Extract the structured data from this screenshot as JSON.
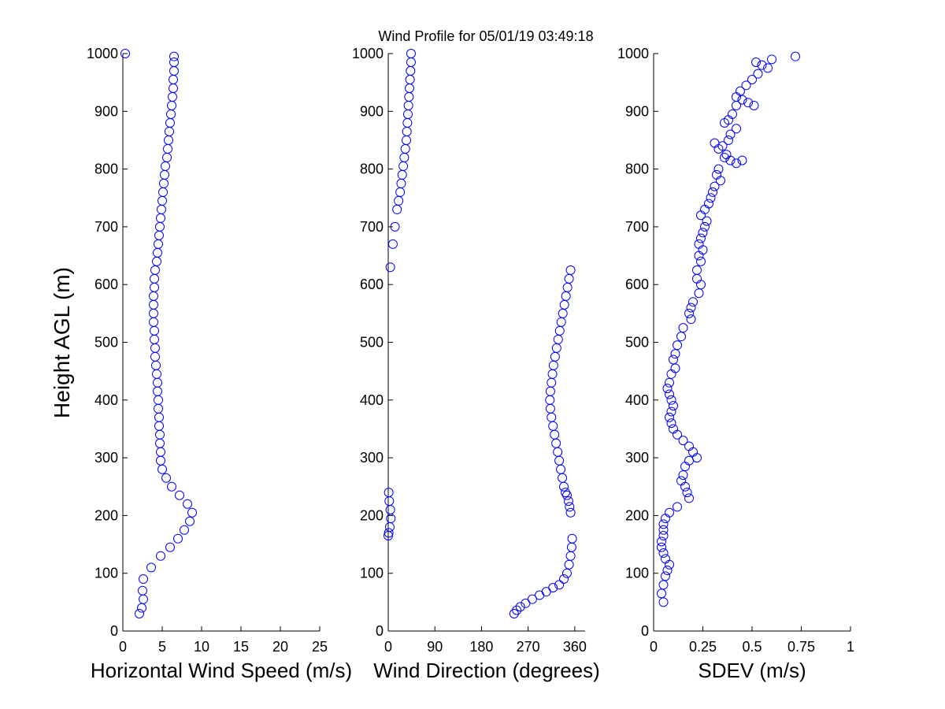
{
  "title": "Wind Profile for  05/01/19 03:49:18",
  "ylabel": "Height AGL (m)",
  "marker_color": "#0000ff",
  "chart_data": [
    {
      "type": "scatter",
      "xlabel": "Horizontal Wind Speed (m/s)",
      "xlim": [
        0,
        25
      ],
      "xticks": [
        "0",
        "5",
        "10",
        "15",
        "20",
        "25"
      ],
      "ylim": [
        0,
        1000
      ],
      "yticks": [
        "0",
        "100",
        "200",
        "300",
        "400",
        "500",
        "600",
        "700",
        "800",
        "900",
        "1000"
      ],
      "x": [
        0.3,
        6.5,
        6.5,
        6.5,
        6.4,
        6.4,
        6.3,
        6.2,
        6.1,
        6.0,
        5.9,
        5.8,
        5.7,
        5.6,
        5.4,
        5.3,
        5.2,
        5.1,
        5.0,
        4.9,
        4.8,
        4.7,
        4.6,
        4.5,
        4.4,
        4.3,
        4.1,
        4.0,
        4.0,
        3.9,
        3.9,
        3.9,
        3.9,
        4.0,
        4.0,
        4.1,
        4.1,
        4.2,
        4.3,
        4.4,
        4.4,
        4.5,
        4.5,
        4.6,
        4.6,
        4.7,
        4.7,
        4.8,
        4.8,
        5.0,
        5.5,
        6.2,
        7.2,
        8.2,
        8.8,
        8.5,
        7.8,
        7.0,
        6.0,
        4.8,
        3.6,
        2.6,
        2.5,
        2.6,
        2.4,
        2.1
      ],
      "y": [
        1000,
        995,
        985,
        970,
        955,
        940,
        925,
        910,
        895,
        880,
        865,
        850,
        835,
        820,
        805,
        790,
        775,
        760,
        745,
        730,
        715,
        700,
        685,
        670,
        655,
        640,
        625,
        610,
        595,
        580,
        565,
        550,
        535,
        520,
        505,
        490,
        475,
        460,
        445,
        430,
        415,
        400,
        385,
        370,
        355,
        340,
        325,
        310,
        295,
        280,
        265,
        250,
        235,
        220,
        205,
        190,
        175,
        160,
        145,
        130,
        110,
        90,
        70,
        55,
        40,
        30
      ]
    },
    {
      "type": "scatter",
      "xlabel": "Wind Direction (degrees)",
      "xlim": [
        0,
        380
      ],
      "xticks": [
        "0",
        "90",
        "180",
        "270",
        "360"
      ],
      "xtick_values": [
        0,
        90,
        180,
        270,
        360
      ],
      "ylim": [
        0,
        1000
      ],
      "yticks": [
        "0",
        "100",
        "200",
        "300",
        "400",
        "500",
        "600",
        "700",
        "800",
        "900",
        "1000"
      ],
      "x": [
        44,
        44,
        43,
        42,
        41,
        40,
        39,
        38,
        37,
        36,
        35,
        33,
        31,
        29,
        27,
        25,
        23,
        20,
        17,
        13,
        9,
        4,
        352,
        349,
        346,
        343,
        340,
        337,
        334,
        331,
        328,
        325,
        322,
        319,
        317,
        315,
        313,
        312,
        313,
        315,
        318,
        321,
        324,
        327,
        330,
        333,
        336,
        339,
        342,
        345,
        348,
        350,
        352,
        1,
        2,
        4,
        5,
        3,
        1,
        0,
        355,
        354,
        352,
        349,
        345,
        339,
        330,
        318,
        305,
        292,
        278,
        265,
        255,
        248,
        243
      ],
      "y": [
        1000,
        985,
        970,
        955,
        940,
        925,
        910,
        895,
        880,
        865,
        850,
        835,
        820,
        805,
        790,
        775,
        760,
        745,
        730,
        700,
        670,
        630,
        625,
        610,
        595,
        580,
        565,
        550,
        535,
        520,
        505,
        490,
        475,
        460,
        445,
        430,
        415,
        400,
        385,
        370,
        355,
        340,
        325,
        310,
        295,
        280,
        265,
        250,
        240,
        235,
        225,
        215,
        205,
        240,
        225,
        210,
        195,
        180,
        170,
        165,
        160,
        145,
        130,
        115,
        100,
        90,
        80,
        75,
        68,
        62,
        55,
        48,
        42,
        36,
        30
      ]
    },
    {
      "type": "scatter",
      "xlabel": "SDEV  (m/s)",
      "xlim": [
        0,
        1
      ],
      "xticks": [
        "0",
        "0.25",
        "0.5",
        "0.75",
        "1"
      ],
      "xtick_values": [
        0,
        0.25,
        0.5,
        0.75,
        1
      ],
      "ylim": [
        0,
        1000
      ],
      "yticks": [
        "0",
        "100",
        "200",
        "300",
        "400",
        "500",
        "600",
        "700",
        "800",
        "900",
        "1000"
      ],
      "x": [
        0.72,
        0.6,
        0.52,
        0.55,
        0.58,
        0.53,
        0.5,
        0.47,
        0.44,
        0.42,
        0.48,
        0.42,
        0.45,
        0.51,
        0.38,
        0.4,
        0.36,
        0.42,
        0.39,
        0.38,
        0.35,
        0.33,
        0.37,
        0.36,
        0.31,
        0.39,
        0.42,
        0.45,
        0.33,
        0.32,
        0.34,
        0.31,
        0.3,
        0.29,
        0.28,
        0.26,
        0.24,
        0.27,
        0.26,
        0.25,
        0.24,
        0.23,
        0.25,
        0.23,
        0.24,
        0.22,
        0.22,
        0.24,
        0.23,
        0.2,
        0.19,
        0.18,
        0.19,
        0.15,
        0.14,
        0.12,
        0.11,
        0.1,
        0.11,
        0.09,
        0.08,
        0.07,
        0.08,
        0.09,
        0.1,
        0.09,
        0.08,
        0.09,
        0.1,
        0.12,
        0.15,
        0.18,
        0.2,
        0.22,
        0.18,
        0.16,
        0.15,
        0.14,
        0.16,
        0.17,
        0.18,
        0.12,
        0.08,
        0.06,
        0.05,
        0.05,
        0.05,
        0.04,
        0.04,
        0.05,
        0.06,
        0.08,
        0.07,
        0.06,
        0.05,
        0.04,
        0.05
      ],
      "y": [
        995,
        990,
        985,
        980,
        975,
        965,
        955,
        945,
        935,
        925,
        915,
        910,
        920,
        910,
        885,
        895,
        880,
        870,
        860,
        850,
        840,
        835,
        825,
        820,
        845,
        815,
        810,
        815,
        800,
        790,
        780,
        770,
        760,
        750,
        740,
        730,
        720,
        710,
        700,
        690,
        680,
        670,
        660,
        650,
        640,
        625,
        610,
        600,
        585,
        570,
        560,
        550,
        540,
        525,
        510,
        495,
        480,
        470,
        455,
        445,
        430,
        420,
        410,
        400,
        390,
        380,
        370,
        360,
        350,
        340,
        330,
        320,
        310,
        300,
        295,
        285,
        270,
        260,
        250,
        240,
        230,
        215,
        205,
        195,
        185,
        175,
        165,
        155,
        145,
        135,
        125,
        115,
        105,
        95,
        80,
        65,
        50
      ]
    }
  ]
}
